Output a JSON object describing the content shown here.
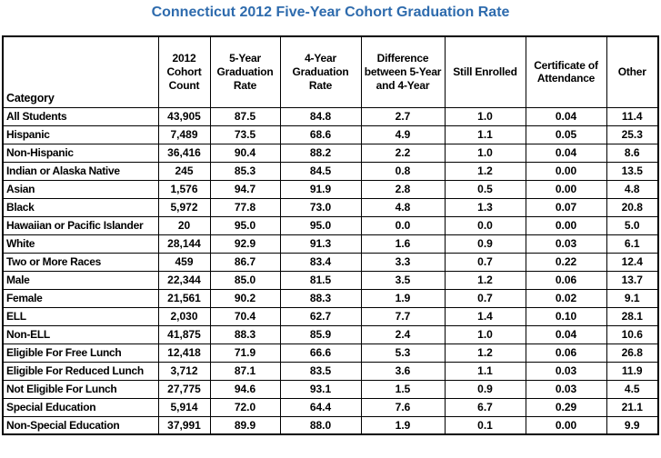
{
  "colors": {
    "title": "#2E6BAD",
    "table_border": "#000000",
    "table_text": "#000000",
    "background": "#FFFFFF"
  },
  "chart_data": {
    "type": "table",
    "title": "Connecticut 2012 Five-Year Cohort Graduation Rate",
    "columns": [
      "Category",
      "2012 Cohort Count",
      "5-Year Graduation Rate",
      "4-Year Graduation Rate",
      "Difference between 5-Year and 4-Year",
      "Still Enrolled",
      "Certificate of Attendance",
      "Other"
    ],
    "rows": [
      [
        "All Students",
        "43,905",
        "87.5",
        "84.8",
        "2.7",
        "1.0",
        "0.04",
        "11.4"
      ],
      [
        "Hispanic",
        "7,489",
        "73.5",
        "68.6",
        "4.9",
        "1.1",
        "0.05",
        "25.3"
      ],
      [
        "Non-Hispanic",
        "36,416",
        "90.4",
        "88.2",
        "2.2",
        "1.0",
        "0.04",
        "8.6"
      ],
      [
        "Indian or Alaska Native",
        "245",
        "85.3",
        "84.5",
        "0.8",
        "1.2",
        "0.00",
        "13.5"
      ],
      [
        "Asian",
        "1,576",
        "94.7",
        "91.9",
        "2.8",
        "0.5",
        "0.00",
        "4.8"
      ],
      [
        "Black",
        "5,972",
        "77.8",
        "73.0",
        "4.8",
        "1.3",
        "0.07",
        "20.8"
      ],
      [
        "Hawaiian or Pacific Islander",
        "20",
        "95.0",
        "95.0",
        "0.0",
        "0.0",
        "0.00",
        "5.0"
      ],
      [
        "White",
        "28,144",
        "92.9",
        "91.3",
        "1.6",
        "0.9",
        "0.03",
        "6.1"
      ],
      [
        "Two or More Races",
        "459",
        "86.7",
        "83.4",
        "3.3",
        "0.7",
        "0.22",
        "12.4"
      ],
      [
        "Male",
        "22,344",
        "85.0",
        "81.5",
        "3.5",
        "1.2",
        "0.06",
        "13.7"
      ],
      [
        "Female",
        "21,561",
        "90.2",
        "88.3",
        "1.9",
        "0.7",
        "0.02",
        "9.1"
      ],
      [
        "ELL",
        "2,030",
        "70.4",
        "62.7",
        "7.7",
        "1.4",
        "0.10",
        "28.1"
      ],
      [
        "Non-ELL",
        "41,875",
        "88.3",
        "85.9",
        "2.4",
        "1.0",
        "0.04",
        "10.6"
      ],
      [
        "Eligible For Free Lunch",
        "12,418",
        "71.9",
        "66.6",
        "5.3",
        "1.2",
        "0.06",
        "26.8"
      ],
      [
        "Eligible For Reduced Lunch",
        "3,712",
        "87.1",
        "83.5",
        "3.6",
        "1.1",
        "0.03",
        "11.9"
      ],
      [
        "Not Eligible For Lunch",
        "27,775",
        "94.6",
        "93.1",
        "1.5",
        "0.9",
        "0.03",
        "4.5"
      ],
      [
        "Special Education",
        "5,914",
        "72.0",
        "64.4",
        "7.6",
        "6.7",
        "0.29",
        "21.1"
      ],
      [
        "Non-Special Education",
        "37,991",
        "89.9",
        "88.0",
        "1.9",
        "0.1",
        "0.00",
        "9.9"
      ]
    ]
  }
}
